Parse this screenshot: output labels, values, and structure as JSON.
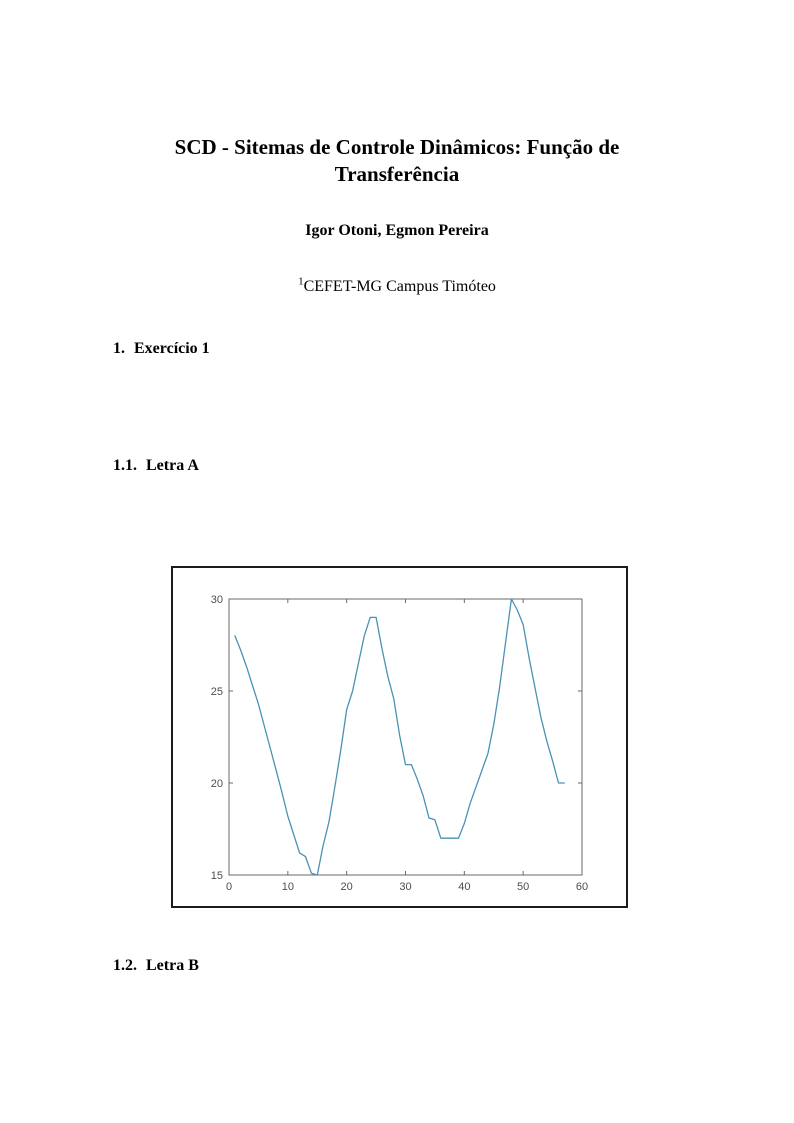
{
  "document": {
    "title_line1": "SCD - Sitemas de Controle Dinâmicos: Função de",
    "title_line2": "Transferência",
    "authors": "Igor Otoni, Egmon Pereira",
    "affiliation_marker": "1",
    "affiliation": "CEFET-MG Campus Timóteo"
  },
  "sections": [
    {
      "number": "1.",
      "label": "Exercício 1"
    },
    {
      "number": "1.1.",
      "label": "Letra A"
    },
    {
      "number": "1.2.",
      "label": "Letra B"
    }
  ],
  "chart_data": {
    "type": "line",
    "title": "",
    "xlabel": "",
    "ylabel": "",
    "x": [
      1,
      2,
      3,
      4,
      5,
      6,
      7,
      8,
      9,
      10,
      11,
      12,
      13,
      14,
      15,
      16,
      17,
      18,
      19,
      20,
      21,
      22,
      23,
      24,
      25,
      26,
      27,
      28,
      29,
      30,
      31,
      32,
      33,
      34,
      35,
      36,
      37,
      38,
      39,
      40,
      41,
      42,
      43,
      44,
      45,
      46,
      47,
      48,
      49,
      50,
      51,
      52,
      53,
      54,
      55,
      56,
      57
    ],
    "y": [
      28,
      27.2,
      26.3,
      25.3,
      24.3,
      23.1,
      21.9,
      20.7,
      19.5,
      18.2,
      17.2,
      16.2,
      16,
      15.1,
      15,
      16.6,
      17.9,
      19.8,
      21.8,
      24,
      25,
      26.5,
      28,
      29,
      29,
      27.3,
      25.8,
      24.6,
      22.6,
      21,
      21,
      20.2,
      19.3,
      18.1,
      18,
      17,
      17,
      17,
      17,
      17.8,
      18.9,
      19.8,
      20.7,
      21.6,
      23.2,
      25.2,
      27.6,
      30,
      29.4,
      28.6,
      26.8,
      25.2,
      23.6,
      22.3,
      21.2,
      20,
      20
    ],
    "xlim": [
      0,
      60
    ],
    "ylim": [
      15,
      30
    ],
    "xticks": [
      0,
      10,
      20,
      30,
      40,
      50,
      60
    ],
    "yticks": [
      15,
      20,
      25,
      30
    ],
    "grid": false,
    "legend": null,
    "box": true,
    "line_color": "#4a92b4",
    "axis_color": "#6a6a6a",
    "tick_label_color": "#4d4d4d"
  }
}
